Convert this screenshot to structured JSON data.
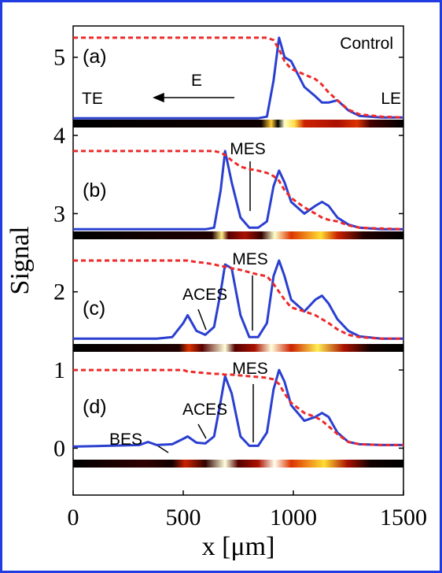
{
  "chart_data": {
    "type": "line",
    "x_label": "x [μm]",
    "y_label": "Signal",
    "xlim": [
      0,
      1500
    ],
    "xticks": [
      0,
      500,
      1000,
      1500
    ],
    "ylim": [
      -0.6,
      5.4
    ],
    "yticks": [
      0,
      1,
      2,
      3,
      4,
      5
    ],
    "x": [
      0,
      300,
      340,
      380,
      450,
      500,
      520,
      560,
      600,
      640,
      670,
      690,
      720,
      760,
      800,
      840,
      880,
      910,
      935,
      960,
      990,
      1050,
      1100,
      1130,
      1160,
      1200,
      1250,
      1300,
      1400,
      1500
    ],
    "series": [
      {
        "color": "#2a3fd0",
        "dashed": false,
        "values": [
          4.22,
          4.22,
          4.22,
          4.22,
          4.22,
          4.22,
          4.22,
          4.22,
          4.22,
          4.22,
          4.22,
          4.22,
          4.22,
          4.22,
          4.22,
          4.22,
          4.24,
          4.7,
          5.25,
          5.0,
          4.95,
          4.62,
          4.5,
          4.42,
          4.42,
          4.45,
          4.32,
          4.25,
          4.23,
          4.23
        ]
      },
      {
        "color": "#ee2a2a",
        "dashed": true,
        "values": [
          5.25,
          5.25,
          5.25,
          5.25,
          5.25,
          5.25,
          5.25,
          5.25,
          5.25,
          5.25,
          5.25,
          5.25,
          5.25,
          5.25,
          5.25,
          5.25,
          5.25,
          5.22,
          5.1,
          4.95,
          4.85,
          4.78,
          4.72,
          4.65,
          4.55,
          4.45,
          4.33,
          4.27,
          4.24,
          4.23
        ]
      },
      {
        "color": "#2a3fd0",
        "dashed": false,
        "values": [
          2.8,
          2.8,
          2.8,
          2.8,
          2.8,
          2.8,
          2.8,
          2.8,
          2.8,
          2.82,
          3.3,
          3.8,
          3.4,
          2.95,
          2.82,
          2.82,
          2.9,
          3.35,
          3.55,
          3.4,
          3.15,
          3.0,
          3.1,
          3.15,
          3.1,
          2.95,
          2.86,
          2.82,
          2.8,
          2.8
        ]
      },
      {
        "color": "#ee2a2a",
        "dashed": true,
        "values": [
          3.8,
          3.8,
          3.8,
          3.8,
          3.8,
          3.8,
          3.8,
          3.8,
          3.8,
          3.8,
          3.78,
          3.75,
          3.68,
          3.6,
          3.57,
          3.55,
          3.52,
          3.48,
          3.42,
          3.3,
          3.2,
          3.08,
          3.0,
          2.95,
          2.92,
          2.9,
          2.85,
          2.82,
          2.81,
          2.8
        ]
      },
      {
        "color": "#2a3fd0",
        "dashed": false,
        "values": [
          1.4,
          1.4,
          1.4,
          1.4,
          1.42,
          1.6,
          1.7,
          1.5,
          1.45,
          1.55,
          2.0,
          2.35,
          2.3,
          1.7,
          1.42,
          1.42,
          1.6,
          2.2,
          2.4,
          2.2,
          1.9,
          1.75,
          1.9,
          1.95,
          1.85,
          1.65,
          1.5,
          1.43,
          1.4,
          1.4
        ]
      },
      {
        "color": "#ee2a2a",
        "dashed": true,
        "values": [
          2.4,
          2.4,
          2.4,
          2.4,
          2.4,
          2.4,
          2.4,
          2.38,
          2.37,
          2.35,
          2.33,
          2.32,
          2.3,
          2.28,
          2.25,
          2.22,
          2.2,
          2.1,
          2.0,
          1.9,
          1.8,
          1.75,
          1.7,
          1.65,
          1.6,
          1.52,
          1.45,
          1.42,
          1.4,
          1.4
        ]
      },
      {
        "color": "#2a3fd0",
        "dashed": false,
        "values": [
          0.02,
          0.04,
          0.08,
          0.04,
          0.05,
          0.12,
          0.15,
          0.07,
          0.06,
          0.15,
          0.6,
          0.92,
          0.7,
          0.15,
          0.03,
          0.03,
          0.2,
          0.75,
          1.0,
          0.85,
          0.55,
          0.35,
          0.4,
          0.45,
          0.4,
          0.2,
          0.08,
          0.05,
          0.04,
          0.04
        ]
      },
      {
        "color": "#ee2a2a",
        "dashed": true,
        "values": [
          1.0,
          1.0,
          1.0,
          1.0,
          1.0,
          1.0,
          0.98,
          0.97,
          0.96,
          0.95,
          0.95,
          0.94,
          0.94,
          0.93,
          0.92,
          0.91,
          0.9,
          0.88,
          0.82,
          0.7,
          0.58,
          0.45,
          0.4,
          0.35,
          0.28,
          0.18,
          0.08,
          0.05,
          0.04,
          0.04
        ]
      }
    ],
    "annotations": [
      "Control",
      "(a)",
      "TE",
      "E",
      "LE",
      "(b)",
      "MES",
      "(c)",
      "MES",
      "ACES",
      "(d)",
      "MES",
      "ACES",
      "BES"
    ]
  }
}
